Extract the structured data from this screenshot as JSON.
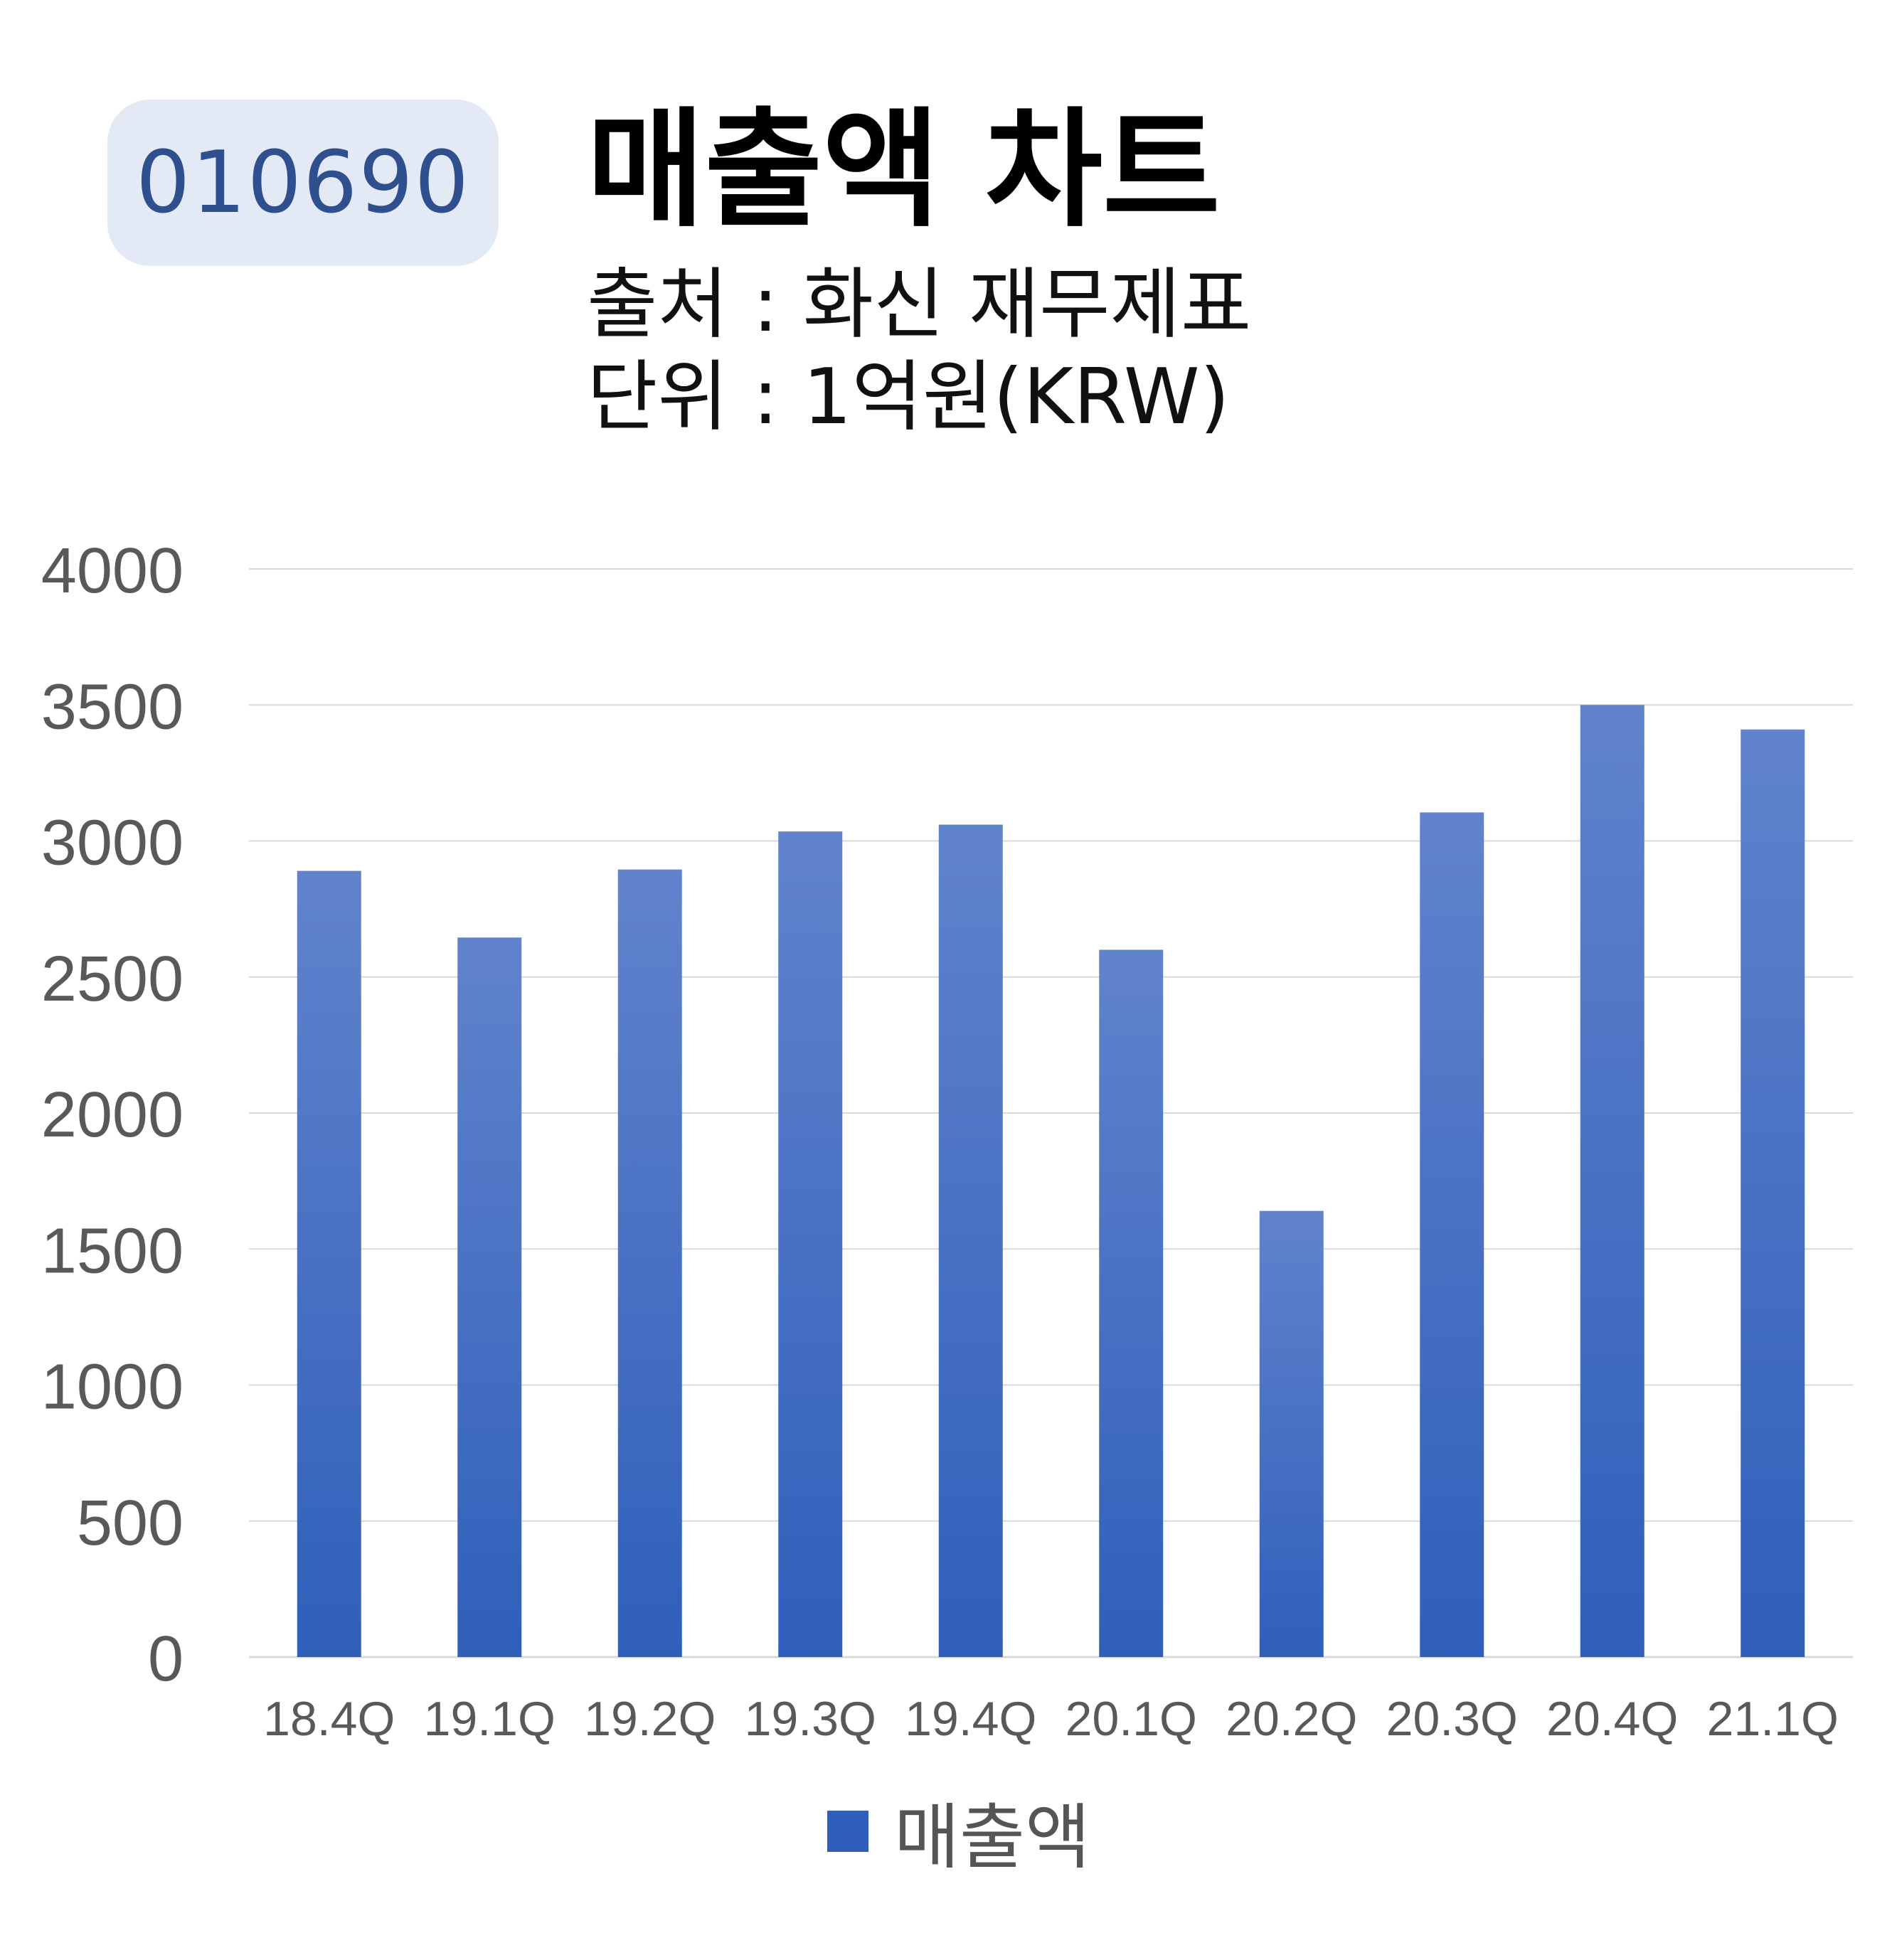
{
  "header": {
    "code": "010690",
    "title": "매출액 차트",
    "source": "출처 : 화신 재무제표",
    "unit": "단위 : 1억원(KRW)"
  },
  "colors": {
    "bar_top": "#6183cc",
    "bar_bottom": "#2f5fba",
    "grid": "#d9d9d9",
    "axis_text": "#595959",
    "badge_bg": "#e3e9f5",
    "badge_text": "#2f4f8f"
  },
  "legend": {
    "label": "매출액"
  },
  "chart_data": {
    "type": "bar",
    "categories": [
      "18.4Q",
      "19.1Q",
      "19.2Q",
      "19.3Q",
      "19.4Q",
      "20.1Q",
      "20.2Q",
      "20.3Q",
      "20.4Q",
      "21.1Q"
    ],
    "series": [
      {
        "name": "매출액",
        "values": [
          2890,
          2645,
          2895,
          3035,
          3060,
          2600,
          1640,
          3105,
          3500,
          3410
        ]
      }
    ],
    "ylim": [
      0,
      4000
    ],
    "yticks": [
      0,
      500,
      1000,
      1500,
      2000,
      2500,
      3000,
      3500,
      4000
    ],
    "grid": true,
    "legend_position": "bottom"
  }
}
